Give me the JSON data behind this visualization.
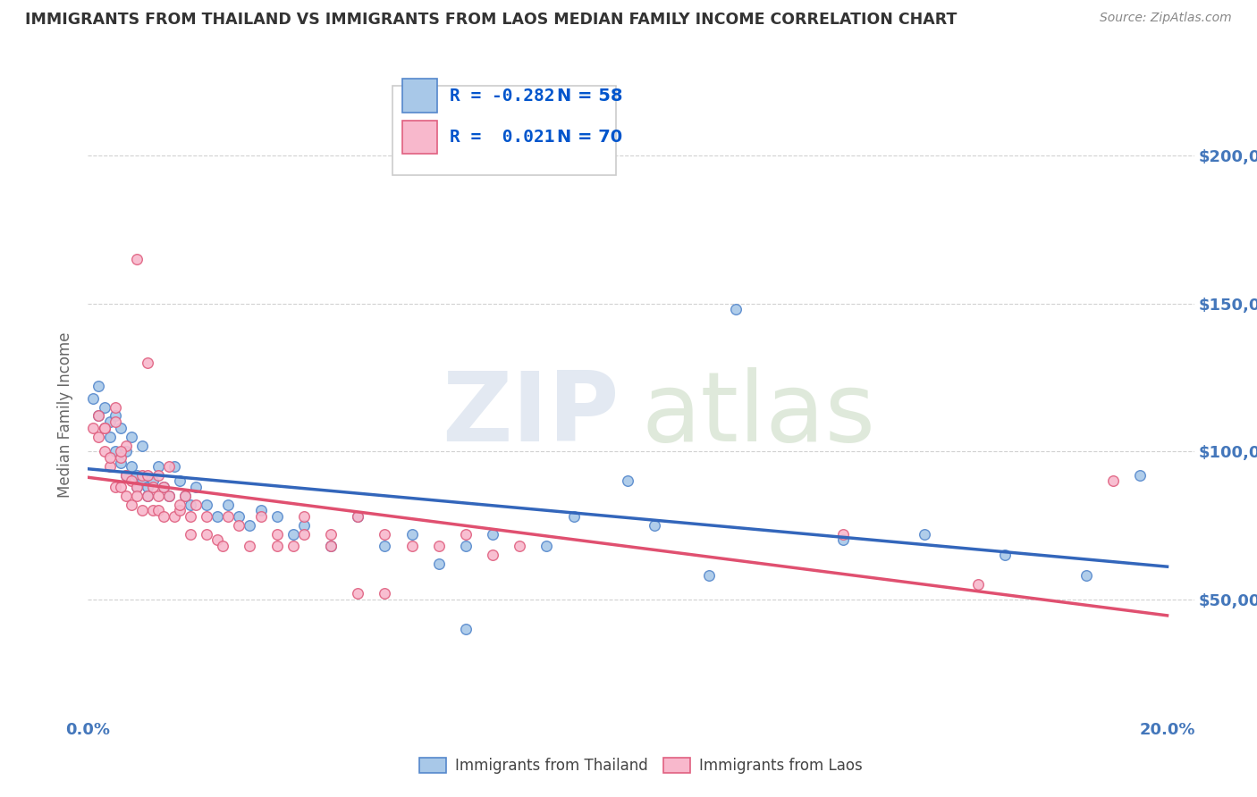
{
  "title": "IMMIGRANTS FROM THAILAND VS IMMIGRANTS FROM LAOS MEDIAN FAMILY INCOME CORRELATION CHART",
  "source": "Source: ZipAtlas.com",
  "ylabel": "Median Family Income",
  "xlim": [
    0.0,
    0.205
  ],
  "ylim": [
    10000,
    215000
  ],
  "yticks": [
    50000,
    100000,
    150000,
    200000
  ],
  "ytick_labels": [
    "$50,000",
    "$100,000",
    "$150,000",
    "$200,000"
  ],
  "xticks": [
    0.0,
    0.025,
    0.05,
    0.075,
    0.1,
    0.125,
    0.15,
    0.175,
    0.2
  ],
  "xtick_labels": [
    "0.0%",
    "",
    "",
    "",
    "",
    "",
    "",
    "",
    "20.0%"
  ],
  "background_color": "#ffffff",
  "grid_color": "#cccccc",
  "series": [
    {
      "name": "Immigrants from Thailand",
      "color": "#a8c8e8",
      "edge_color": "#5588cc",
      "R": -0.282,
      "N": 58,
      "line_color": "#3366bb",
      "x": [
        0.001,
        0.002,
        0.002,
        0.003,
        0.003,
        0.004,
        0.004,
        0.005,
        0.005,
        0.006,
        0.006,
        0.007,
        0.007,
        0.008,
        0.008,
        0.009,
        0.009,
        0.01,
        0.01,
        0.011,
        0.011,
        0.012,
        0.013,
        0.014,
        0.015,
        0.016,
        0.017,
        0.018,
        0.019,
        0.02,
        0.022,
        0.024,
        0.026,
        0.028,
        0.03,
        0.032,
        0.035,
        0.038,
        0.04,
        0.045,
        0.05,
        0.055,
        0.06,
        0.065,
        0.07,
        0.075,
        0.085,
        0.09,
        0.1,
        0.105,
        0.12,
        0.14,
        0.155,
        0.17,
        0.185,
        0.195,
        0.07,
        0.115
      ],
      "y": [
        118000,
        122000,
        112000,
        115000,
        108000,
        110000,
        105000,
        112000,
        100000,
        108000,
        96000,
        100000,
        92000,
        105000,
        95000,
        92000,
        88000,
        102000,
        90000,
        88000,
        85000,
        90000,
        95000,
        88000,
        85000,
        95000,
        90000,
        85000,
        82000,
        88000,
        82000,
        78000,
        82000,
        78000,
        75000,
        80000,
        78000,
        72000,
        75000,
        68000,
        78000,
        68000,
        72000,
        62000,
        68000,
        72000,
        68000,
        78000,
        90000,
        75000,
        148000,
        70000,
        72000,
        65000,
        58000,
        92000,
        40000,
        58000
      ]
    },
    {
      "name": "Immigrants from Laos",
      "color": "#f8b8cc",
      "edge_color": "#e06080",
      "R": 0.021,
      "N": 70,
      "line_color": "#e05070",
      "x": [
        0.001,
        0.002,
        0.002,
        0.003,
        0.003,
        0.004,
        0.004,
        0.005,
        0.005,
        0.006,
        0.006,
        0.007,
        0.007,
        0.008,
        0.008,
        0.009,
        0.009,
        0.01,
        0.01,
        0.011,
        0.011,
        0.012,
        0.012,
        0.013,
        0.013,
        0.014,
        0.014,
        0.015,
        0.016,
        0.017,
        0.018,
        0.019,
        0.02,
        0.022,
        0.024,
        0.026,
        0.028,
        0.03,
        0.032,
        0.035,
        0.038,
        0.04,
        0.045,
        0.05,
        0.055,
        0.06,
        0.07,
        0.08,
        0.005,
        0.007,
        0.009,
        0.011,
        0.013,
        0.015,
        0.017,
        0.019,
        0.022,
        0.025,
        0.003,
        0.006,
        0.035,
        0.04,
        0.045,
        0.05,
        0.055,
        0.065,
        0.075,
        0.14,
        0.165,
        0.19
      ],
      "y": [
        108000,
        112000,
        105000,
        108000,
        100000,
        95000,
        98000,
        110000,
        88000,
        98000,
        88000,
        92000,
        85000,
        90000,
        82000,
        88000,
        85000,
        80000,
        92000,
        92000,
        85000,
        88000,
        80000,
        80000,
        85000,
        88000,
        78000,
        95000,
        78000,
        80000,
        85000,
        72000,
        82000,
        78000,
        70000,
        78000,
        75000,
        68000,
        78000,
        72000,
        68000,
        72000,
        68000,
        78000,
        52000,
        68000,
        72000,
        68000,
        115000,
        102000,
        165000,
        130000,
        92000,
        85000,
        82000,
        78000,
        72000,
        68000,
        108000,
        100000,
        68000,
        78000,
        72000,
        52000,
        72000,
        68000,
        65000,
        72000,
        55000,
        90000
      ]
    }
  ],
  "title_color": "#333333",
  "axis_label_color": "#666666",
  "tick_color": "#4477bb",
  "source_color": "#888888",
  "marker_size": 70,
  "marker_linewidth": 1.0,
  "trend_linewidth": 2.5,
  "legend_R_color": "#0055cc",
  "legend_N_color": "#0055cc"
}
